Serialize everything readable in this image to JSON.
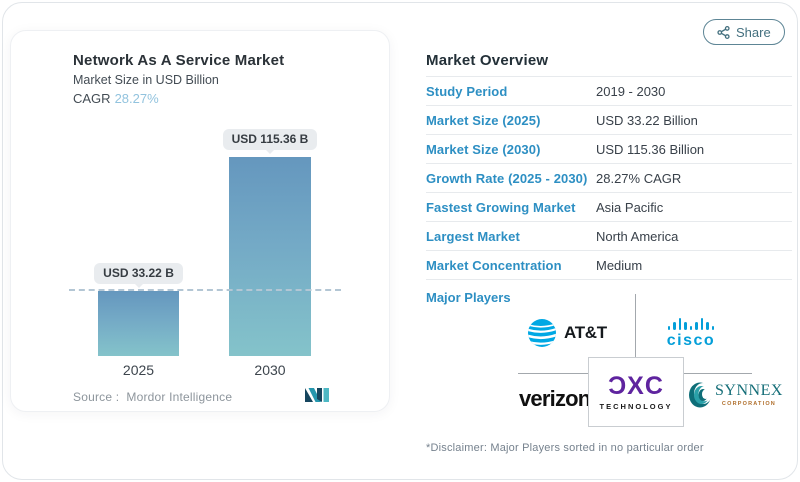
{
  "share": {
    "label": "Share"
  },
  "chart_card": {
    "title": "Network As A Service Market",
    "subtitle": "Market Size in USD Billion",
    "cagr_label": "CAGR",
    "cagr_value": "28.27%",
    "bars": [
      {
        "year": "2025",
        "label": "USD 33.22 B"
      },
      {
        "year": "2030",
        "label": "USD 115.36 B"
      }
    ],
    "source_label": "Source :",
    "source_brand": "Mordor Intelligence"
  },
  "chart_data": {
    "type": "bar",
    "title": "Network As A Service Market",
    "subtitle": "Market Size in USD Billion",
    "categories": [
      "2025",
      "2030"
    ],
    "values": [
      33.22,
      115.36
    ],
    "unit": "USD Billion",
    "data_labels": [
      "USD 33.22 B",
      "USD 115.36 B"
    ],
    "cagr": "28.27%",
    "reference_line": 33.22,
    "ylim": [
      0,
      115.36
    ],
    "grid": false,
    "bar_gradient": [
      "#6597be",
      "#84c3ca"
    ]
  },
  "overview": {
    "title": "Market Overview",
    "rows": [
      {
        "label": "Study Period",
        "value": "2019 - 2030"
      },
      {
        "label": "Market Size (2025)",
        "value": "USD 33.22 Billion"
      },
      {
        "label": "Market Size (2030)",
        "value": "USD 115.36 Billion"
      },
      {
        "label": "Growth Rate (2025 - 2030)",
        "value": "28.27% CAGR"
      },
      {
        "label": "Fastest Growing Market",
        "value": "Asia Pacific"
      },
      {
        "label": "Largest Market",
        "value": "North America"
      },
      {
        "label": "Market Concentration",
        "value": "Medium"
      }
    ],
    "major_players": {
      "label": "Major Players",
      "companies": [
        {
          "name": "AT&T",
          "wordmark": "AT&T"
        },
        {
          "name": "Cisco",
          "wordmark": "cisco"
        },
        {
          "name": "Verizon",
          "wordmark": "verizon"
        },
        {
          "name": "DXC Technology",
          "wordmark": "ƆXC",
          "sub": "TECHNOLOGY"
        },
        {
          "name": "SYNNEX Corporation",
          "wordmark": "SYNNEX",
          "sub": "CORPORATION"
        }
      ]
    },
    "disclaimer": "*Disclaimer: Major Players sorted in no particular order"
  },
  "colors": {
    "accent_blue": "#2d8fc3",
    "cagr_blue": "#92c3de",
    "bar_top": "#6597be",
    "bar_bottom": "#84c3ca",
    "att_blue": "#00a8e4",
    "cisco_blue": "#049fd9",
    "verizon_red": "#e60000",
    "dxc_purple": "#5f249f",
    "synnex_teal": "#156e78",
    "share_teal": "#44707f"
  }
}
